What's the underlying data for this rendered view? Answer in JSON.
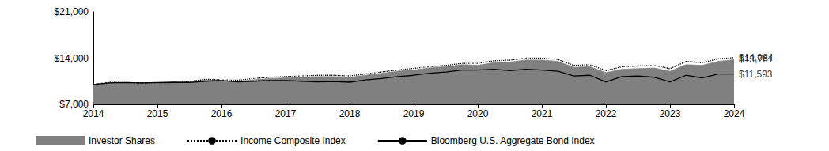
{
  "chart_data": {
    "type": "line",
    "x": [
      2014,
      2014.25,
      2014.5,
      2014.75,
      2015,
      2015.25,
      2015.5,
      2015.75,
      2016,
      2016.25,
      2016.5,
      2016.75,
      2017,
      2017.25,
      2017.5,
      2017.75,
      2018,
      2018.25,
      2018.5,
      2018.75,
      2019,
      2019.25,
      2019.5,
      2019.75,
      2020,
      2020.25,
      2020.5,
      2020.75,
      2021,
      2021.25,
      2021.5,
      2021.75,
      2022,
      2022.25,
      2022.5,
      2022.75,
      2023,
      2023.25,
      2023.5,
      2023.75,
      2024
    ],
    "series": [
      {
        "name": "Investor Shares",
        "type": "area",
        "color": "#808080",
        "values": [
          10000,
          10300,
          10250,
          10200,
          10200,
          10250,
          10400,
          10700,
          10600,
          10500,
          10700,
          10900,
          11000,
          11100,
          11200,
          11200,
          11100,
          11400,
          11700,
          12000,
          12200,
          12500,
          12700,
          13000,
          12900,
          13300,
          13400,
          13700,
          13700,
          13500,
          12600,
          12700,
          11800,
          12300,
          12400,
          12500,
          12000,
          13000,
          12900,
          13500,
          13761
        ]
      },
      {
        "name": "Income Composite Index",
        "type": "line",
        "color": "#000000",
        "line_style": "dotted",
        "values": [
          10000,
          10350,
          10300,
          10250,
          10250,
          10300,
          10450,
          10800,
          10700,
          10650,
          10900,
          11100,
          11200,
          11300,
          11400,
          11400,
          11300,
          11600,
          11900,
          12200,
          12450,
          12700,
          12900,
          13200,
          13200,
          13600,
          13700,
          14000,
          14000,
          13800,
          12900,
          13000,
          12100,
          12700,
          12800,
          12900,
          12400,
          13500,
          13300,
          13900,
          14084
        ]
      },
      {
        "name": "Bloomberg U.S. Aggregate Bond Index",
        "type": "line",
        "color": "#000000",
        "line_style": "solid",
        "values": [
          10000,
          10250,
          10300,
          10250,
          10300,
          10350,
          10300,
          10500,
          10600,
          10400,
          10500,
          10600,
          10600,
          10500,
          10400,
          10450,
          10350,
          10700,
          10900,
          11200,
          11400,
          11700,
          11900,
          12200,
          12200,
          12300,
          12100,
          12300,
          12200,
          12000,
          11300,
          11400,
          10400,
          11200,
          11300,
          11100,
          10400,
          11400,
          11000,
          11600,
          11593
        ]
      }
    ],
    "annotations": [
      {
        "text": "$14,084",
        "x": 2024,
        "y": 14084
      },
      {
        "text": "$13,761",
        "x": 2024,
        "y": 13761
      },
      {
        "text": "$11,593",
        "x": 2024,
        "y": 11593
      }
    ],
    "xlim": [
      2014,
      2024
    ],
    "xticks": [
      2014,
      2015,
      2016,
      2017,
      2018,
      2019,
      2020,
      2021,
      2022,
      2023,
      2024
    ],
    "ylim": [
      7000,
      21000
    ],
    "yticks": [
      {
        "value": 7000,
        "label": "$7,000"
      },
      {
        "value": 14000,
        "label": "$14,000"
      },
      {
        "value": 21000,
        "label": "$21,000"
      }
    ],
    "grid": false,
    "legend": "bottom-left"
  }
}
